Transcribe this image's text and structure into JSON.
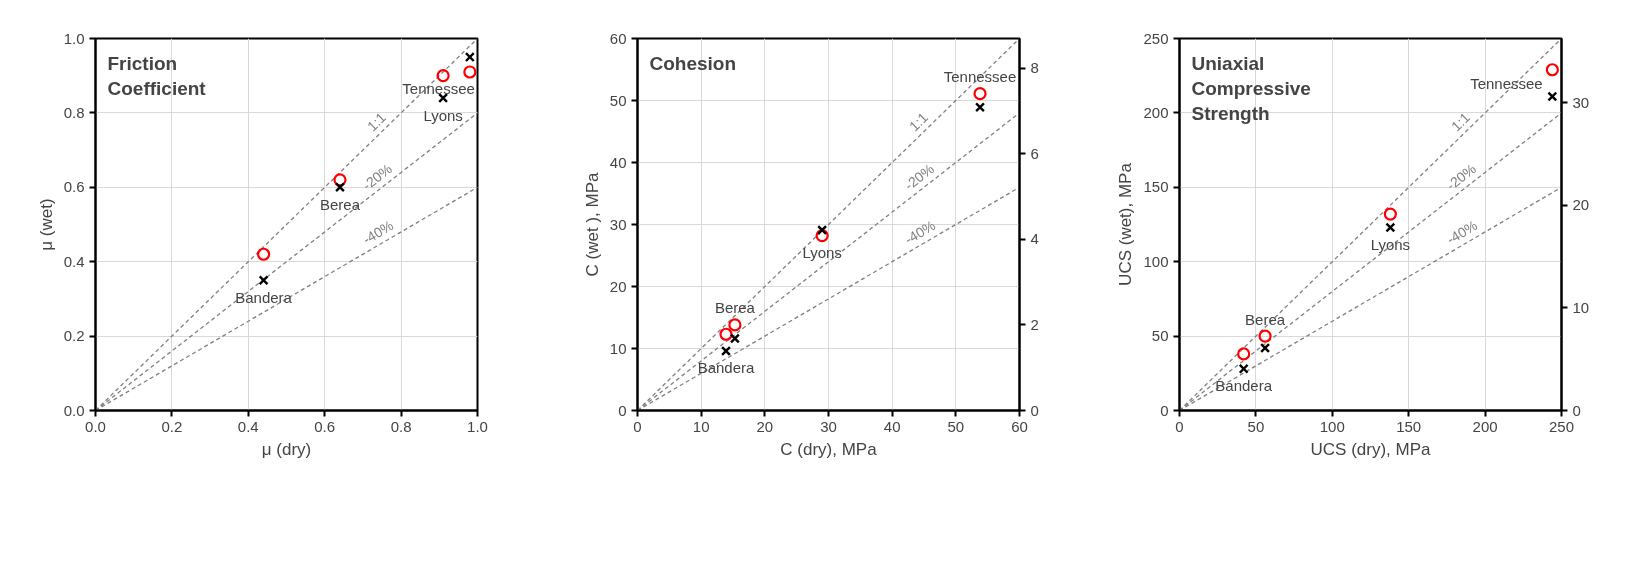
{
  "chart_data": [
    {
      "type": "scatter",
      "title": "Friction Coefficient",
      "xlabel": "μ (dry)",
      "ylabel": "μ (wet)",
      "grid": true,
      "xlim": [
        0,
        1
      ],
      "ylim": [
        0,
        1
      ],
      "xticks": [
        {
          "value": 0,
          "label": "0.0"
        },
        {
          "value": 0.2,
          "label": "0.2"
        },
        {
          "value": 0.4,
          "label": "0.4"
        },
        {
          "value": 0.6,
          "label": "0.6"
        },
        {
          "value": 0.8,
          "label": "0.8"
        },
        {
          "value": 1,
          "label": "1.0"
        }
      ],
      "yticks": [
        {
          "value": 0,
          "label": "0.0"
        },
        {
          "value": 0.2,
          "label": "0.2"
        },
        {
          "value": 0.4,
          "label": "0.4"
        },
        {
          "value": 0.6,
          "label": "0.6"
        },
        {
          "value": 0.8,
          "label": "0.8"
        },
        {
          "value": 1,
          "label": "1.0"
        }
      ],
      "series": [
        {
          "name": "1:1",
          "type": "line",
          "line_style": "dashed",
          "color": "#808080",
          "x": [
            0,
            1
          ],
          "values": [
            0,
            1
          ]
        },
        {
          "name": "-20%",
          "type": "line",
          "line_style": "dashed",
          "color": "#808080",
          "x": [
            0,
            1
          ],
          "values": [
            0,
            0.8
          ]
        },
        {
          "name": "-40%",
          "type": "line",
          "line_style": "dashed",
          "color": "#808080",
          "x": [
            0,
            1
          ],
          "values": [
            0,
            0.6
          ]
        },
        {
          "marker": "circle",
          "color": "#ff0000",
          "x": [
            0.44,
            0.64,
            0.91,
            0.98
          ],
          "values": [
            0.42,
            0.62,
            0.9,
            0.91
          ]
        },
        {
          "marker": "cross",
          "color": "#000000",
          "x": [
            0.44,
            0.64,
            0.91,
            0.98
          ],
          "values": [
            0.35,
            0.6,
            0.84,
            0.95
          ]
        }
      ],
      "annotations": [
        "Bandera",
        "Berea",
        "Lyons",
        "Tennessee"
      ]
    },
    {
      "type": "scatter",
      "title": "Cohesion",
      "xlabel": "C (dry), MPa",
      "ylabel": "C (wet ), MPa",
      "grid": true,
      "xlim": [
        0,
        60
      ],
      "ylim": [
        0,
        60
      ],
      "xticks": [
        0,
        10,
        20,
        30,
        40,
        50,
        60
      ],
      "yticks": [
        0,
        10,
        20,
        30,
        40,
        50,
        60
      ],
      "y2lim": [
        0,
        8.7
      ],
      "y2ticks": [
        0,
        2,
        4,
        6,
        8
      ],
      "series": [
        {
          "name": "1:1",
          "type": "line",
          "line_style": "dashed",
          "color": "#808080",
          "x": [
            0,
            60
          ],
          "values": [
            0,
            60
          ]
        },
        {
          "name": "-20%",
          "type": "line",
          "line_style": "dashed",
          "color": "#808080",
          "x": [
            0,
            60
          ],
          "values": [
            0,
            48
          ]
        },
        {
          "name": "-40%",
          "type": "line",
          "line_style": "dashed",
          "color": "#808080",
          "x": [
            0,
            60
          ],
          "values": [
            0,
            36
          ]
        },
        {
          "marker": "circle",
          "color": "#ff0000",
          "x": [
            13.9,
            15.3,
            29,
            53.8
          ],
          "values": [
            12.3,
            13.8,
            28.2,
            51.1
          ]
        },
        {
          "marker": "cross",
          "color": "#000000",
          "x": [
            13.9,
            15.3,
            29,
            53.8
          ],
          "values": [
            9.6,
            11.6,
            29.1,
            48.9
          ]
        }
      ],
      "annotations": [
        "Bandera",
        "Berea",
        "Lyons",
        "Tennessee"
      ]
    },
    {
      "type": "scatter",
      "title": "Uniaxial Compressive Strength",
      "xlabel": "UCS (dry), MPa",
      "ylabel": "UCS (wet), MPa",
      "grid": true,
      "xlim": [
        0,
        250
      ],
      "ylim": [
        0,
        250
      ],
      "xticks": [
        0,
        50,
        100,
        150,
        200,
        250
      ],
      "yticks": [
        0,
        50,
        100,
        150,
        200,
        250
      ],
      "y2lim": [
        0,
        36.26
      ],
      "y2ticks": [
        0,
        10,
        20,
        30
      ],
      "series": [
        {
          "name": "1:1",
          "type": "line",
          "line_style": "dashed",
          "color": "#808080",
          "x": [
            0,
            250
          ],
          "values": [
            0,
            250
          ]
        },
        {
          "name": "-20%",
          "type": "line",
          "line_style": "dashed",
          "color": "#808080",
          "x": [
            0,
            250
          ],
          "values": [
            0,
            200
          ]
        },
        {
          "name": "-40%",
          "type": "line",
          "line_style": "dashed",
          "color": "#808080",
          "x": [
            0,
            250
          ],
          "values": [
            0,
            150
          ]
        },
        {
          "marker": "circle",
          "color": "#ff0000",
          "x": [
            42,
            56,
            138,
            244
          ],
          "values": [
            38,
            50,
            132,
            229
          ]
        },
        {
          "marker": "cross",
          "color": "#000000",
          "x": [
            42,
            56,
            138,
            244
          ],
          "values": [
            28,
            42,
            123,
            211
          ]
        }
      ],
      "annotations": [
        "Bandera",
        "Berea",
        "Lyons",
        "Tennessee"
      ]
    }
  ]
}
